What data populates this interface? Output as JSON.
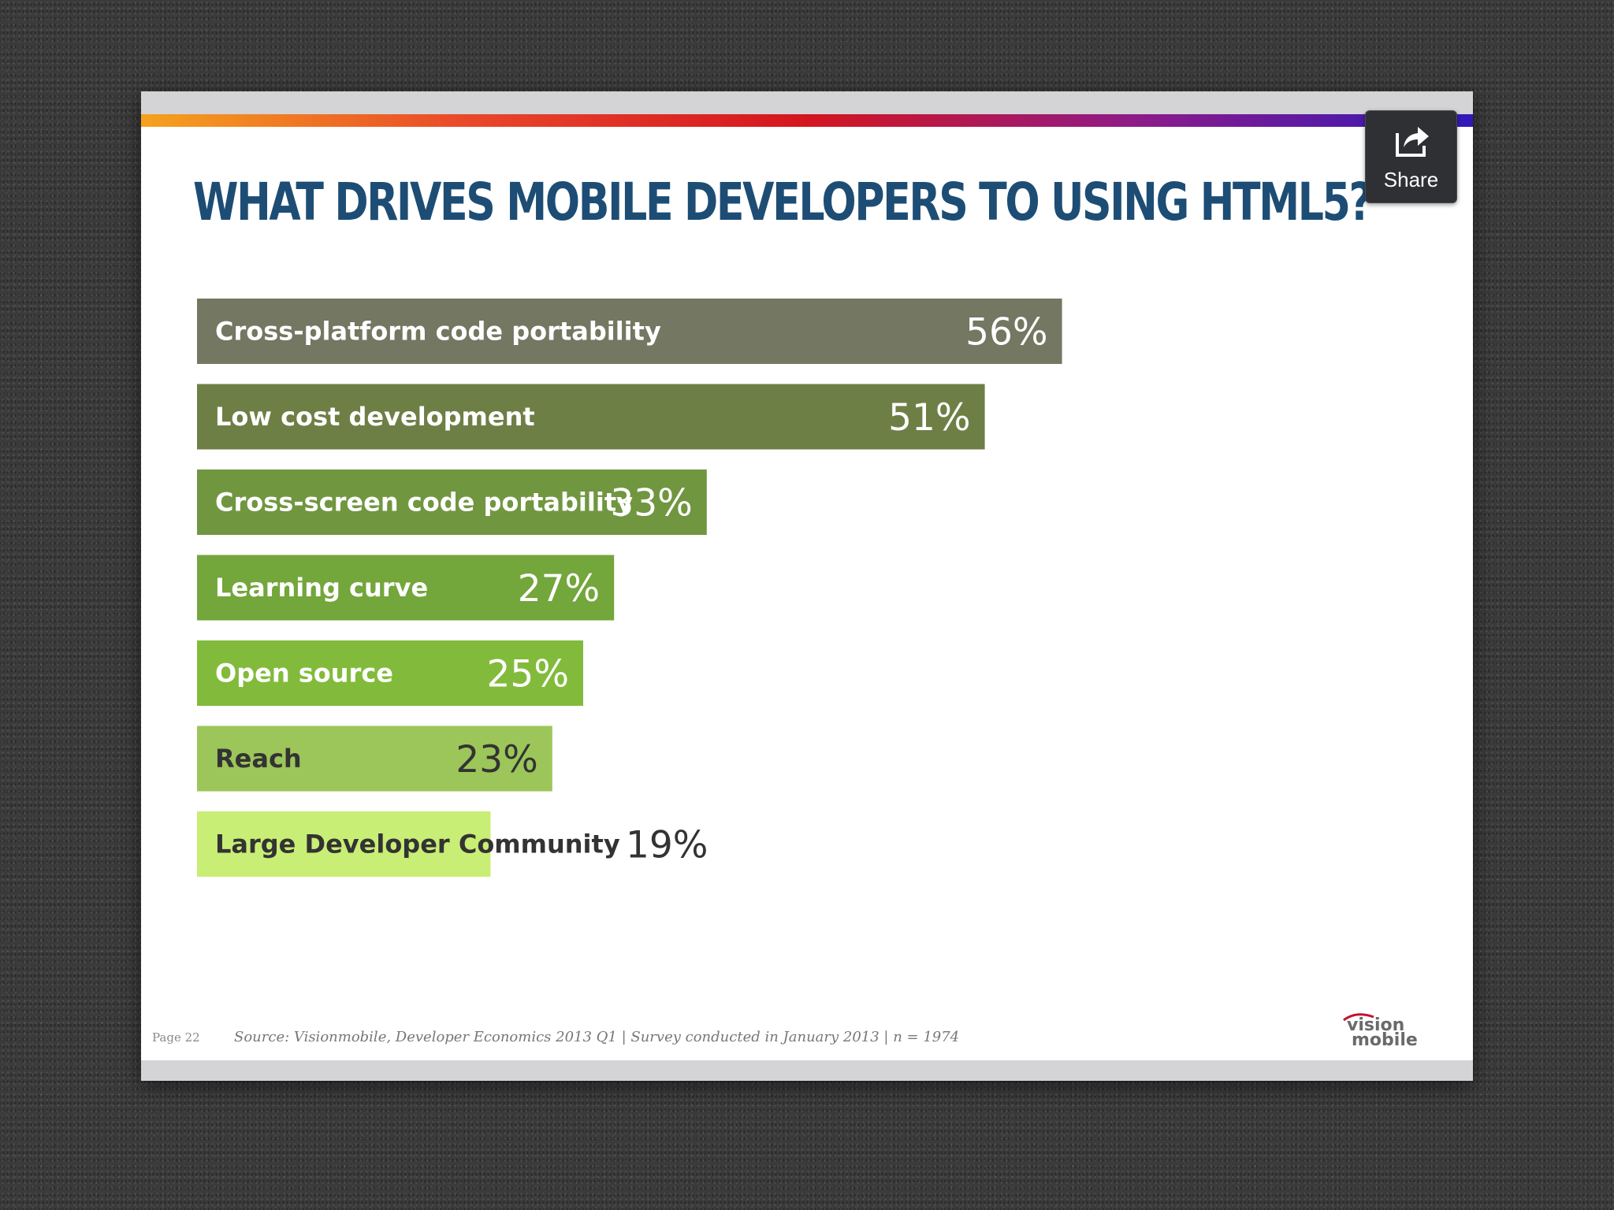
{
  "share_button": {
    "label": "Share",
    "icon": "share-icon"
  },
  "slide": {
    "page_label": "Page 22",
    "source_note": "Source: Visionmobile, Developer Economics 2013 Q1 | Survey conducted in January 2013 | n = 1974",
    "brand": {
      "line1": "vision",
      "line2": "mobile"
    },
    "accent_gradient": [
      "#f5a21e",
      "#e9462a",
      "#d4151f",
      "#8c1b8a",
      "#3019b8"
    ]
  },
  "chart_data": {
    "type": "bar",
    "orientation": "horizontal",
    "title": "WHAT DRIVES MOBILE DEVELOPERS TO USING HTML5?",
    "categories": [
      "Cross-platform code portability",
      "Low cost development",
      "Cross-screen code portability",
      "Learning curve",
      "Open source",
      "Reach",
      "Large Developer Community"
    ],
    "values": [
      56,
      51,
      33,
      27,
      25,
      23,
      19
    ],
    "value_labels": [
      "56%",
      "51%",
      "33%",
      "27%",
      "25%",
      "23%",
      "19%"
    ],
    "bar_colors": [
      "#747761",
      "#6e7f46",
      "#719640",
      "#73a63b",
      "#82bb3b",
      "#9cc659",
      "#c8ee75"
    ],
    "label_colors": [
      "#ffffff",
      "#ffffff",
      "#ffffff",
      "#ffffff",
      "#ffffff",
      "#333333",
      "#333333"
    ],
    "xlim": [
      0,
      100
    ],
    "xlabel": "",
    "ylabel": "",
    "grid": false,
    "legend": "none"
  }
}
